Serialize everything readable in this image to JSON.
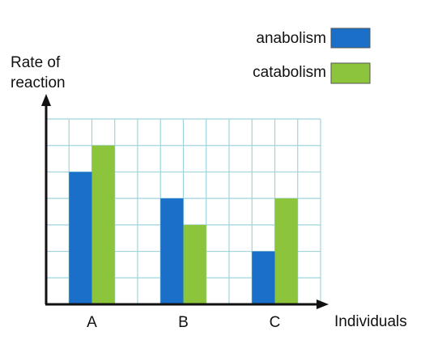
{
  "chart_data": {
    "type": "bar",
    "categories": [
      "A",
      "B",
      "C"
    ],
    "series": [
      {
        "name": "anabolism",
        "values": [
          5,
          4,
          2
        ]
      },
      {
        "name": "catabolism",
        "values": [
          6,
          3,
          4
        ]
      }
    ],
    "ylabel_line1": "Rate of",
    "ylabel_line2": "reaction",
    "xlabel": "Individuals",
    "ylim": [
      0,
      7
    ],
    "y_ticks_shown": false,
    "grid": true,
    "legend_position": "top-right",
    "colors": {
      "anabolism": "#1a6fc8",
      "catabolism": "#8cc43c",
      "grid": "#9fd4dc",
      "axis": "#111111"
    }
  }
}
